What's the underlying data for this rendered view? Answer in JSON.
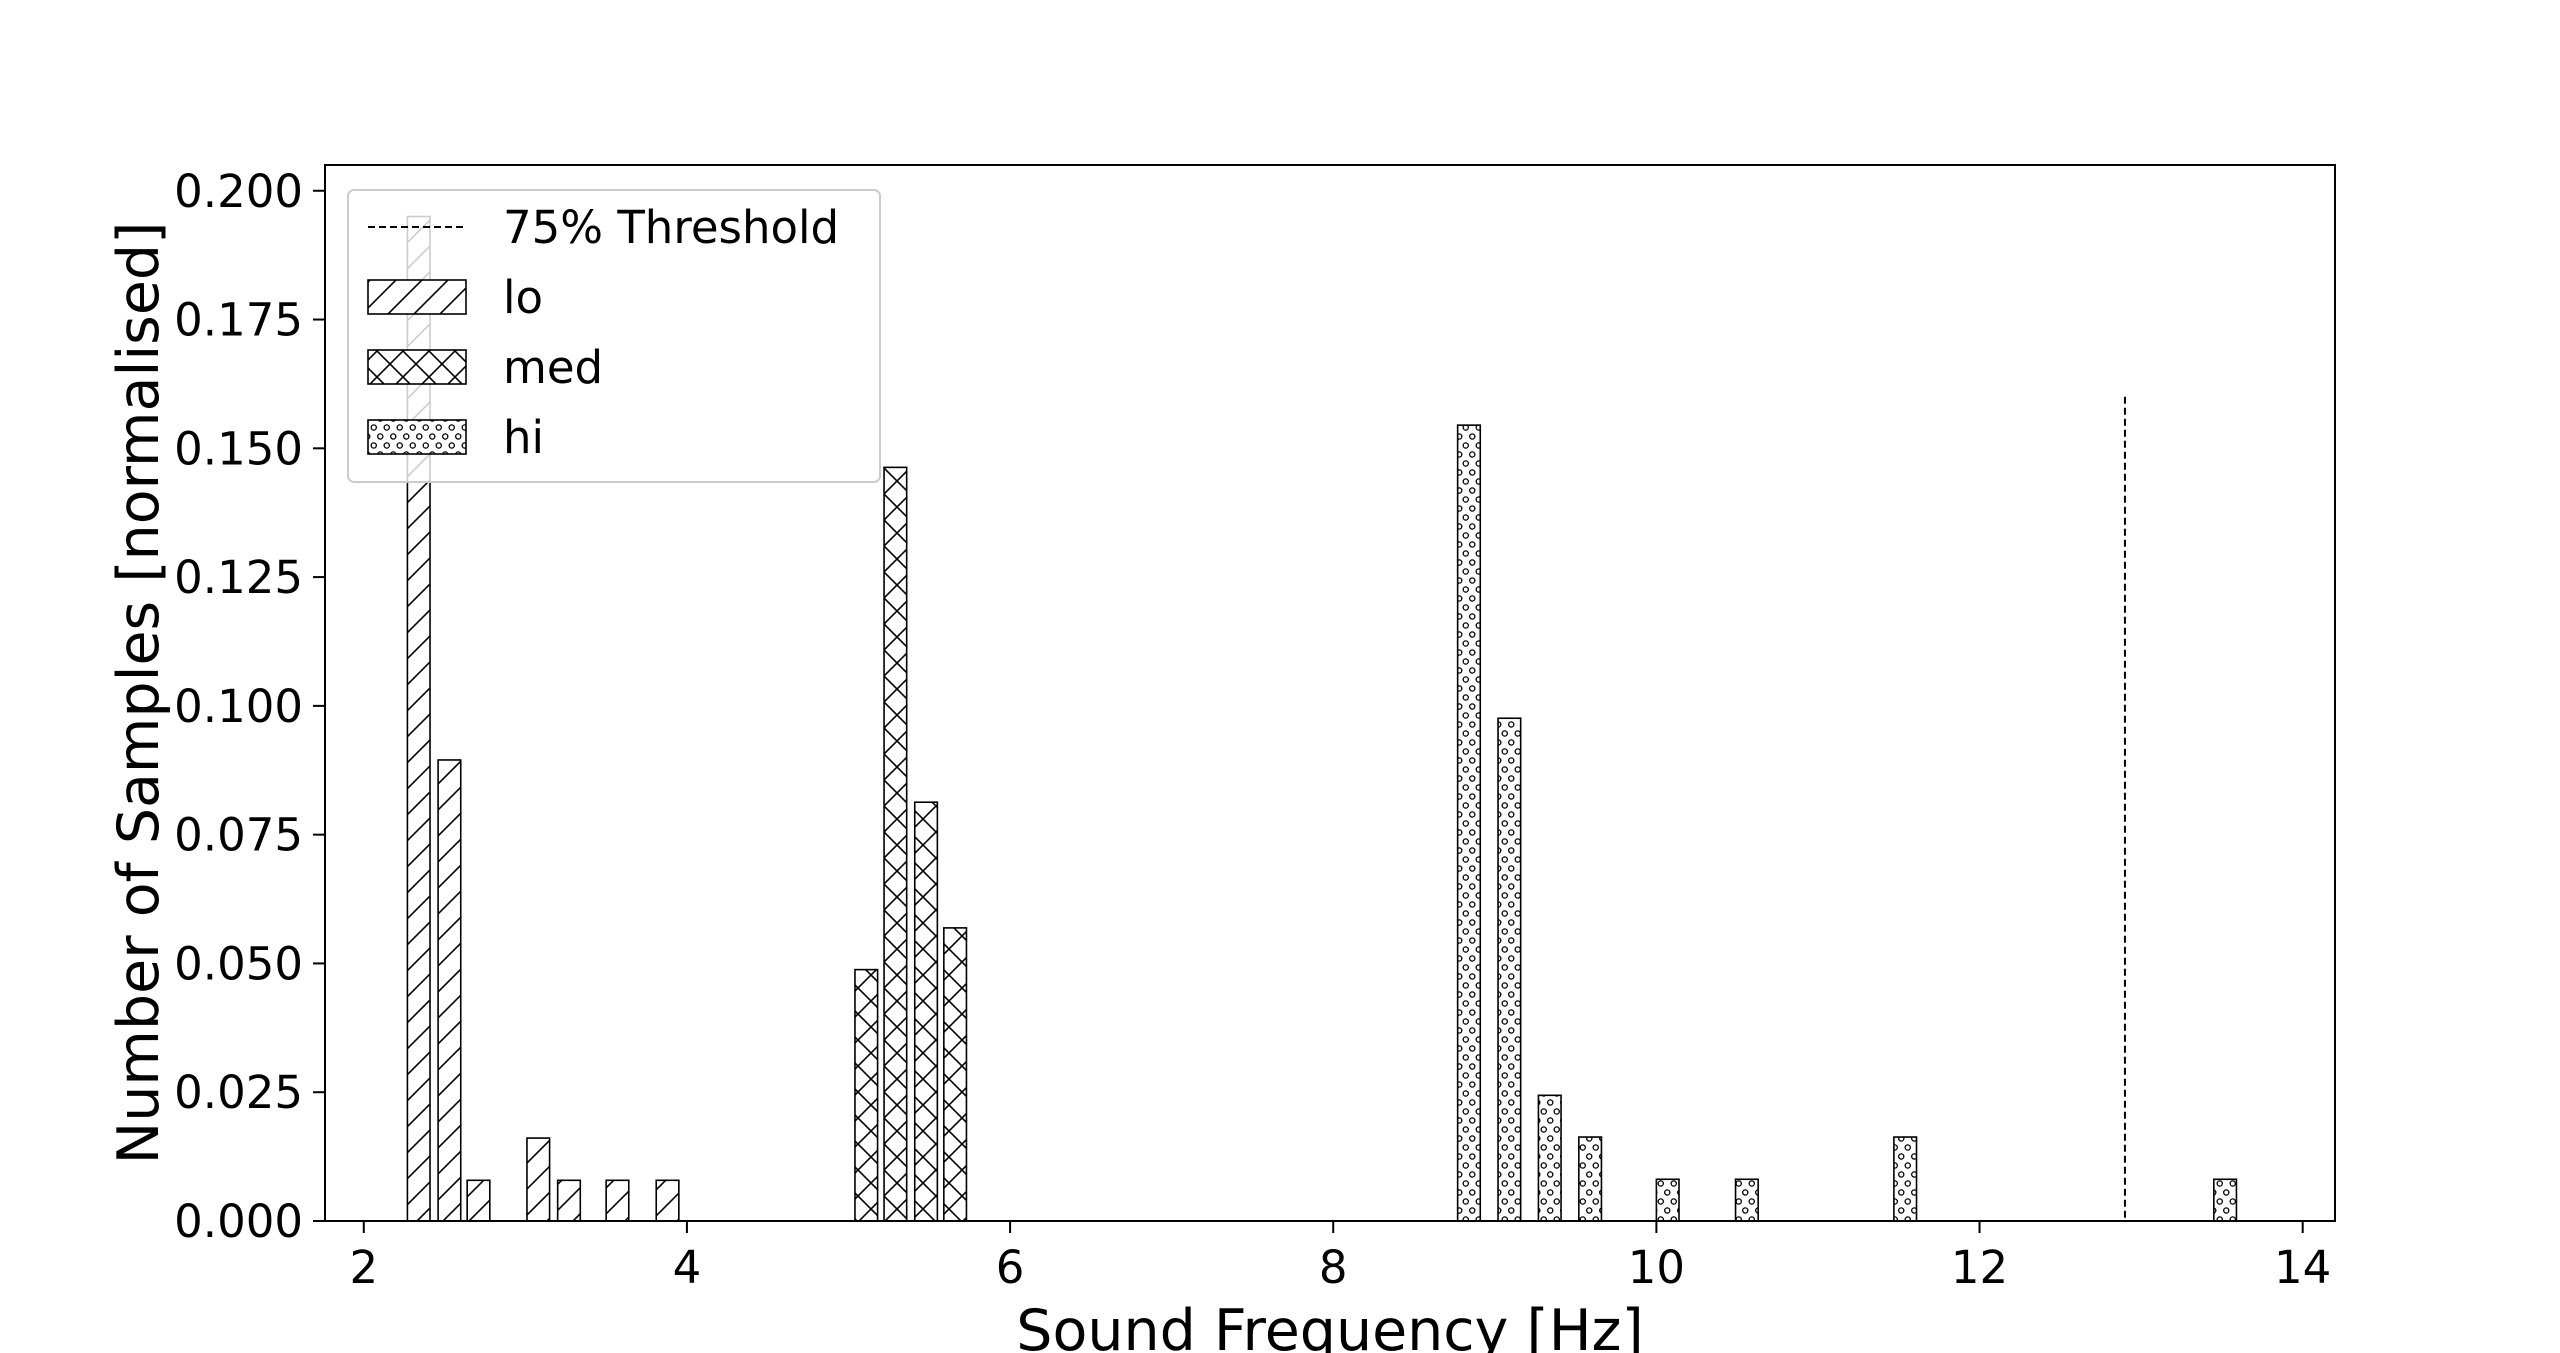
{
  "chart_data": {
    "type": "bar",
    "title": "",
    "xlabel": "Sound Frequency [Hz]",
    "ylabel": "Number of Samples [normalised]",
    "xlim": [
      1.76,
      14.2
    ],
    "ylim": [
      0,
      0.205
    ],
    "xticks": [
      "2",
      "4",
      "6",
      "8",
      "10",
      "12",
      "14"
    ],
    "xtick_values": [
      2,
      4,
      6,
      8,
      10,
      12,
      14
    ],
    "yticks": [
      "0.000",
      "0.025",
      "0.050",
      "0.075",
      "0.100",
      "0.125",
      "0.150",
      "0.175",
      "0.200"
    ],
    "ytick_values": [
      0,
      0.025,
      0.05,
      0.075,
      0.1,
      0.125,
      0.15,
      0.175,
      0.2
    ],
    "bin_width": 0.1855,
    "bar_width": 0.14,
    "grid": false,
    "legend_position": "top-left",
    "series": [
      {
        "name": "lo",
        "hatch": "diagonal",
        "x": [
          2.34,
          2.53,
          2.71,
          3.08,
          3.27,
          3.57,
          3.88
        ],
        "values": [
          0.195,
          0.0895,
          0.0079,
          0.0161,
          0.0079,
          0.0079,
          0.0079
        ]
      },
      {
        "name": "med",
        "hatch": "crosshatch",
        "x": [
          5.11,
          5.29,
          5.48,
          5.66
        ],
        "values": [
          0.0488,
          0.1463,
          0.0813,
          0.0569
        ]
      },
      {
        "name": "hi",
        "hatch": "dots",
        "x": [
          8.84,
          9.09,
          9.34,
          9.59,
          10.07,
          10.56,
          11.54,
          13.52
        ],
        "values": [
          0.1545,
          0.0976,
          0.0244,
          0.0163,
          0.0081,
          0.0081,
          0.0163,
          0.0081
        ]
      }
    ],
    "threshold": {
      "name": "75% Threshold",
      "x": 12.9,
      "y_top": 0.16,
      "style": "dashed"
    }
  }
}
